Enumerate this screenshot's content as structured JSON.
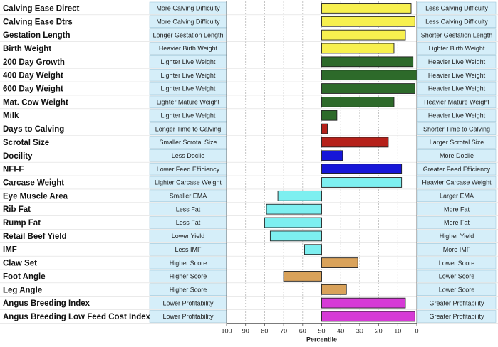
{
  "chart_data": {
    "type": "bar",
    "orientation": "horizontal",
    "xlabel": "Percentile",
    "xlim": [
      100,
      0
    ],
    "baseline": 50,
    "xticks": [
      100,
      90,
      80,
      70,
      60,
      50,
      40,
      30,
      20,
      10,
      0
    ],
    "grid": true,
    "colors": {
      "yellow": "#f7f04f",
      "green": "#2d6a2a",
      "red": "#b5211a",
      "blue": "#1616d8",
      "cyan": "#7deff0",
      "tan": "#d9a25a",
      "magenta": "#d63ad6",
      "desc_bg": "#d5eef9"
    },
    "rows": [
      {
        "trait": "Calving Ease Direct",
        "low": "More Calving Difficulty",
        "high": "Less Calving Difficulty",
        "value": 3,
        "color": "#f7f04f"
      },
      {
        "trait": "Calving Ease Dtrs",
        "low": "More Calving Difficulty",
        "high": "Less Calving Difficulty",
        "value": 1,
        "color": "#f7f04f"
      },
      {
        "trait": "Gestation Length",
        "low": "Longer Gestation Length",
        "high": "Shorter Gestation Length",
        "value": 6,
        "color": "#f7f04f"
      },
      {
        "trait": "Birth Weight",
        "low": "Heavier Birth Weight",
        "high": "Lighter Birth Weight",
        "value": 12,
        "color": "#f7f04f"
      },
      {
        "trait": "200 Day Growth",
        "low": "Lighter Live Weight",
        "high": "Heavier Live Weight",
        "value": 2,
        "color": "#2d6a2a"
      },
      {
        "trait": "400 Day Weight",
        "low": "Lighter Live Weight",
        "high": "Heavier Live Weight",
        "value": 0,
        "color": "#2d6a2a"
      },
      {
        "trait": "600 Day Weight",
        "low": "Lighter Live Weight",
        "high": "Heavier Live Weight",
        "value": 1,
        "color": "#2d6a2a"
      },
      {
        "trait": "Mat. Cow Weight",
        "low": "Lighter Mature Weight",
        "high": "Heavier Mature Weight",
        "value": 12,
        "color": "#2d6a2a"
      },
      {
        "trait": "Milk",
        "low": "Lighter Live Weight",
        "high": "Heavier Live Weight",
        "value": 42,
        "color": "#2d6a2a"
      },
      {
        "trait": "Days to Calving",
        "low": "Longer Time to Calving",
        "high": "Shorter Time to Calving",
        "value": 47,
        "color": "#b5211a"
      },
      {
        "trait": "Scrotal Size",
        "low": "Smaller Scrotal Size",
        "high": "Larger Scrotal Size",
        "value": 15,
        "color": "#b5211a"
      },
      {
        "trait": "Docility",
        "low": "Less Docile",
        "high": "More Docile",
        "value": 39,
        "color": "#1616d8"
      },
      {
        "trait": "NFI-F",
        "low": "Lower Feed Efficiency",
        "high": "Greater Feed Efficiency",
        "value": 8,
        "color": "#1616d8"
      },
      {
        "trait": "Carcase Weight",
        "low": "Lighter Carcase Weight",
        "high": "Heavier Carcase Weight",
        "value": 8,
        "color": "#7deff0"
      },
      {
        "trait": "Eye Muscle Area",
        "low": "Smaller EMA",
        "high": "Larger EMA",
        "value": 73,
        "color": "#7deff0"
      },
      {
        "trait": "Rib Fat",
        "low": "Less Fat",
        "high": "More Fat",
        "value": 79,
        "color": "#7deff0"
      },
      {
        "trait": "Rump Fat",
        "low": "Less Fat",
        "high": "More Fat",
        "value": 80,
        "color": "#7deff0"
      },
      {
        "trait": "Retail Beef Yield",
        "low": "Lower Yield",
        "high": "Higher Yield",
        "value": 77,
        "color": "#7deff0"
      },
      {
        "trait": "IMF",
        "low": "Less IMF",
        "high": "More IMF",
        "value": 59,
        "color": "#7deff0"
      },
      {
        "trait": "Claw Set",
        "low": "Higher Score",
        "high": "Lower Score",
        "value": 31,
        "color": "#d9a25a"
      },
      {
        "trait": "Foot Angle",
        "low": "Higher Score",
        "high": "Lower Score",
        "value": 70,
        "color": "#d9a25a"
      },
      {
        "trait": "Leg Angle",
        "low": "Higher Score",
        "high": "Lower Score",
        "value": 37,
        "color": "#d9a25a"
      },
      {
        "trait": "Angus Breeding Index",
        "low": "Lower Profitability",
        "high": "Greater Profitability",
        "value": 6,
        "color": "#d63ad6"
      },
      {
        "trait": "Angus Breeding Low Feed Cost Index",
        "low": "Lower Profitability",
        "high": "Greater Profitability",
        "value": 1,
        "color": "#d63ad6"
      }
    ]
  }
}
